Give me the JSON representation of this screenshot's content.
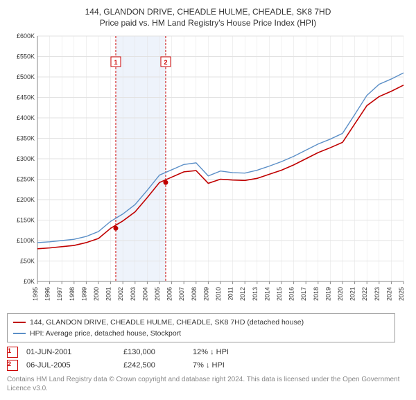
{
  "title": "144, GLANDON DRIVE, CHEADLE HULME, CHEADLE, SK8 7HD",
  "subtitle": "Price paid vs. HM Land Registry's House Price Index (HPI)",
  "chart": {
    "type": "line",
    "background_color": "#ffffff",
    "grid_color": "#e2e2e2",
    "axis_color": "#888888",
    "tick_fontsize": 9,
    "x": {
      "label_rotation": -90,
      "categories": [
        "1995",
        "1996",
        "1997",
        "1998",
        "1999",
        "2000",
        "2001",
        "2002",
        "2003",
        "2004",
        "2005",
        "2006",
        "2007",
        "2008",
        "2009",
        "2010",
        "2011",
        "2012",
        "2013",
        "2014",
        "2015",
        "2016",
        "2017",
        "2018",
        "2019",
        "2020",
        "2021",
        "2022",
        "2023",
        "2024",
        "2025"
      ]
    },
    "y": {
      "prefix": "£",
      "suffix": "K",
      "min": 0,
      "max": 600,
      "step": 50
    },
    "shaded_band": {
      "from_cat": "2001",
      "to_cat": "2005",
      "fill": "#eef3fb"
    },
    "vlines": [
      {
        "cat": "2001",
        "frac": 0.42,
        "color": "#cc0000",
        "dash": "3,2"
      },
      {
        "cat": "2005",
        "frac": 0.51,
        "color": "#cc0000",
        "dash": "3,2"
      }
    ],
    "marker_labels": [
      {
        "n": "1",
        "cat": "2001",
        "frac": 0.42
      },
      {
        "n": "2",
        "cat": "2005",
        "frac": 0.51
      }
    ],
    "series": [
      {
        "name": "144, GLANDON DRIVE, CHEADLE HULME, CHEADLE, SK8 7HD (detached house)",
        "color": "#c00000",
        "width": 1.6,
        "values": [
          80,
          82,
          85,
          88,
          95,
          105,
          130,
          148,
          170,
          205,
          242,
          255,
          268,
          271,
          240,
          250,
          248,
          247,
          252,
          262,
          272,
          285,
          300,
          315,
          327,
          340,
          385,
          430,
          452,
          465,
          480
        ]
      },
      {
        "name": "HPI: Average price, detached house, Stockport",
        "color": "#5b8fc7",
        "width": 1.4,
        "values": [
          95,
          97,
          100,
          103,
          110,
          122,
          147,
          165,
          188,
          223,
          260,
          273,
          286,
          290,
          258,
          270,
          266,
          265,
          272,
          282,
          293,
          306,
          321,
          336,
          348,
          362,
          408,
          455,
          482,
          495,
          510
        ]
      }
    ],
    "sale_points": [
      {
        "cat": "2001",
        "frac": 0.42,
        "value": 130,
        "color": "#c00000"
      },
      {
        "cat": "2005",
        "frac": 0.51,
        "value": 242,
        "color": "#c00000"
      }
    ]
  },
  "legend": {
    "series1": "144, GLANDON DRIVE, CHEADLE HULME, CHEADLE, SK8 7HD (detached house)",
    "series2": "HPI: Average price, detached house, Stockport"
  },
  "sales": [
    {
      "n": "1",
      "date": "01-JUN-2001",
      "price": "£130,000",
      "diff": "12% ↓ HPI"
    },
    {
      "n": "2",
      "date": "06-JUL-2005",
      "price": "£242,500",
      "diff": "7% ↓ HPI"
    }
  ],
  "footnote": "Contains HM Land Registry data © Crown copyright and database right 2024. This data is licensed under the Open Government Licence v3.0."
}
